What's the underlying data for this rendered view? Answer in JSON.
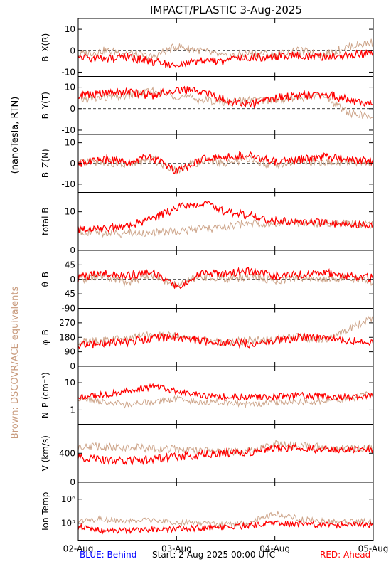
{
  "title": "IMPACT/PLASTIC     3-Aug-2025",
  "left_labels": {
    "units": "(nanoTesla, RTN)",
    "equivalents": "Brown: DSCOVR/ACE equivalents"
  },
  "footer": {
    "behind": "BLUE: Behind",
    "start": "Start:  2-Aug-2025 00:00 UTC",
    "ahead": "RED: Ahead"
  },
  "colors": {
    "ahead": "#ff0000",
    "brown": "#c89a7c",
    "behind": "#0000ff"
  },
  "chart_data": {
    "type": "line",
    "x_ticks": [
      "02-Aug",
      "03-Aug",
      "04-Aug",
      "05-Aug"
    ],
    "xlim": [
      "2025-08-02T00:00",
      "2025-08-05T00:00"
    ],
    "panels": [
      {
        "id": "bx",
        "ylabel": "B_X(R)",
        "ylim": [
          -12,
          15
        ],
        "yticks": [
          -10,
          0,
          10
        ],
        "zero_line": true,
        "scale": "linear",
        "series": [
          {
            "color": "brown",
            "x": [
              0,
              0.25,
              0.5,
              0.75,
              1,
              1.25,
              1.5,
              1.75,
              2,
              2.25,
              2.5,
              2.75,
              3
            ],
            "y": [
              -2,
              0,
              -1,
              -3,
              2,
              0,
              -3,
              -1,
              -2,
              0,
              -2,
              2,
              4
            ]
          },
          {
            "color": "ahead",
            "x": [
              0,
              0.25,
              0.5,
              0.75,
              1,
              1.25,
              1.5,
              1.75,
              2,
              2.25,
              2.5,
              2.75,
              3
            ],
            "y": [
              -3,
              -4,
              -3,
              -5,
              -7,
              -5,
              -5,
              -3,
              -3,
              -2,
              -3,
              -2,
              -1
            ]
          }
        ]
      },
      {
        "id": "by",
        "ylabel": "B_Y(T)",
        "ylim": [
          -12,
          15
        ],
        "yticks": [
          -10,
          0,
          10
        ],
        "zero_line": true,
        "scale": "linear",
        "series": [
          {
            "color": "brown",
            "x": [
              0,
              0.25,
              0.5,
              0.75,
              1,
              1.25,
              1.5,
              1.75,
              2,
              2.25,
              2.5,
              2.75,
              3
            ],
            "y": [
              4,
              5,
              6,
              8,
              6,
              4,
              3,
              4,
              4,
              5,
              6,
              -2,
              -4
            ]
          },
          {
            "color": "ahead",
            "x": [
              0,
              0.25,
              0.5,
              0.75,
              1,
              1.25,
              1.5,
              1.75,
              2,
              2.25,
              2.5,
              2.75,
              3
            ],
            "y": [
              6,
              7,
              8,
              6,
              9,
              8,
              4,
              2,
              5,
              6,
              7,
              4,
              2
            ]
          }
        ]
      },
      {
        "id": "bz",
        "ylabel": "B_Z(N)",
        "ylim": [
          -14,
          14
        ],
        "yticks": [
          -10,
          0,
          10
        ],
        "zero_line": true,
        "scale": "linear",
        "series": [
          {
            "color": "brown",
            "x": [
              0,
              0.25,
              0.5,
              0.75,
              1,
              1.25,
              1.5,
              1.75,
              2,
              2.25,
              2.5,
              2.75,
              3
            ],
            "y": [
              0,
              1,
              -1,
              2,
              -3,
              1,
              0,
              2,
              -1,
              1,
              0,
              1,
              0
            ]
          },
          {
            "color": "ahead",
            "x": [
              0,
              0.25,
              0.5,
              0.75,
              1,
              1.25,
              1.5,
              1.75,
              2,
              2.25,
              2.5,
              2.75,
              3
            ],
            "y": [
              0,
              2,
              1,
              3,
              -4,
              2,
              3,
              4,
              1,
              2,
              3,
              2,
              1
            ]
          }
        ]
      },
      {
        "id": "bt",
        "ylabel": "total B",
        "ylim": [
          0,
          15
        ],
        "yticks": [
          0,
          10
        ],
        "zero_line": false,
        "scale": "linear",
        "series": [
          {
            "color": "brown",
            "x": [
              0,
              0.25,
              0.5,
              0.75,
              1,
              1.25,
              1.5,
              1.75,
              2,
              2.25,
              2.5,
              2.75,
              3
            ],
            "y": [
              5,
              4.5,
              4.5,
              4.5,
              5,
              5.5,
              6,
              7,
              7,
              7,
              7,
              7,
              6.5
            ]
          },
          {
            "color": "ahead",
            "x": [
              0,
              0.25,
              0.5,
              0.75,
              1,
              1.25,
              1.5,
              1.75,
              2,
              2.25,
              2.5,
              2.75,
              3
            ],
            "y": [
              5.5,
              5.5,
              6.5,
              8,
              11,
              12.5,
              10,
              9,
              7.5,
              7.5,
              7,
              7,
              6.5
            ]
          }
        ]
      },
      {
        "id": "theta",
        "ylabel": "θ_B",
        "ylim": [
          -90,
          90
        ],
        "yticks": [
          -90,
          -45,
          0,
          45
        ],
        "zero_line": true,
        "scale": "linear",
        "series": [
          {
            "color": "brown",
            "x": [
              0,
              0.25,
              0.5,
              0.75,
              1,
              1.25,
              1.5,
              1.75,
              2,
              2.25,
              2.5,
              2.75,
              3
            ],
            "y": [
              0,
              10,
              -10,
              15,
              -20,
              10,
              0,
              10,
              -5,
              5,
              0,
              5,
              -10
            ]
          },
          {
            "color": "ahead",
            "x": [
              0,
              0.25,
              0.5,
              0.75,
              1,
              1.25,
              1.5,
              1.75,
              2,
              2.25,
              2.5,
              2.75,
              3
            ],
            "y": [
              5,
              20,
              10,
              25,
              -25,
              15,
              20,
              25,
              10,
              15,
              20,
              10,
              5
            ]
          }
        ]
      },
      {
        "id": "phi",
        "ylabel": "φ_B",
        "ylim": [
          0,
          360
        ],
        "yticks": [
          0,
          90,
          180,
          270
        ],
        "zero_line": false,
        "scale": "linear",
        "series": [
          {
            "color": "brown",
            "x": [
              0,
              0.25,
              0.5,
              0.75,
              1,
              1.25,
              1.5,
              1.75,
              2,
              2.25,
              2.5,
              2.75,
              3
            ],
            "y": [
              150,
              160,
              170,
              200,
              190,
              160,
              150,
              160,
              170,
              180,
              160,
              230,
              300
            ]
          },
          {
            "color": "ahead",
            "x": [
              0,
              0.25,
              0.5,
              0.75,
              1,
              1.25,
              1.5,
              1.75,
              2,
              2.25,
              2.5,
              2.75,
              3
            ],
            "y": [
              130,
              140,
              150,
              175,
              180,
              160,
              150,
              140,
              160,
              180,
              170,
              160,
              140
            ]
          }
        ]
      },
      {
        "id": "np",
        "ylabel": "N_P (cm⁻³)",
        "ylim": [
          0.3,
          40
        ],
        "yticks": [
          1,
          10
        ],
        "zero_line": false,
        "scale": "log",
        "series": [
          {
            "color": "brown",
            "x": [
              0,
              0.25,
              0.5,
              0.75,
              1,
              1.25,
              1.5,
              1.75,
              2,
              2.25,
              2.5,
              2.75,
              3
            ],
            "y": [
              2.5,
              2,
              1.5,
              2,
              2.5,
              2,
              2,
              1.5,
              2,
              2,
              2,
              2.5,
              4
            ]
          },
          {
            "color": "ahead",
            "x": [
              0,
              0.25,
              0.5,
              0.75,
              1,
              1.25,
              1.5,
              1.75,
              2,
              2.25,
              2.5,
              2.75,
              3
            ],
            "y": [
              3,
              3.5,
              5,
              7,
              5,
              3.5,
              3,
              3,
              3,
              3.5,
              3,
              3,
              3.5
            ]
          }
        ]
      },
      {
        "id": "v",
        "ylabel": "V (km/s)",
        "ylim": [
          0,
          800
        ],
        "yticks": [
          0,
          400
        ],
        "zero_line": false,
        "scale": "linear",
        "series": [
          {
            "color": "brown",
            "x": [
              0,
              0.25,
              0.5,
              0.75,
              1,
              1.25,
              1.5,
              1.75,
              2,
              2.25,
              2.5,
              2.75,
              3
            ],
            "y": [
              500,
              490,
              480,
              470,
              450,
              430,
              420,
              440,
              530,
              500,
              480,
              470,
              470
            ]
          },
          {
            "color": "ahead",
            "x": [
              0,
              0.25,
              0.5,
              0.75,
              1,
              1.25,
              1.5,
              1.75,
              2,
              2.25,
              2.5,
              2.75,
              3
            ],
            "y": [
              340,
              310,
              300,
              320,
              350,
              380,
              400,
              420,
              460,
              470,
              460,
              450,
              450
            ]
          }
        ]
      },
      {
        "id": "temp",
        "ylabel": "Ion Temp",
        "ylim": [
          20000,
          5000000
        ],
        "yticks": [
          100000,
          1000000
        ],
        "ytick_labels": [
          "10⁵",
          "10⁶"
        ],
        "zero_line": false,
        "scale": "log",
        "series": [
          {
            "color": "brown",
            "x": [
              0,
              0.25,
              0.5,
              0.75,
              1,
              1.25,
              1.5,
              1.75,
              2,
              2.25,
              2.5,
              2.75,
              3
            ],
            "y": [
              130000,
              150000,
              120000,
              130000,
              110000,
              100000,
              90000,
              100000,
              250000,
              150000,
              120000,
              110000,
              120000
            ]
          },
          {
            "color": "ahead",
            "x": [
              0,
              0.25,
              0.5,
              0.75,
              1,
              1.25,
              1.5,
              1.75,
              2,
              2.25,
              2.5,
              2.75,
              3
            ],
            "y": [
              70000,
              50000,
              50000,
              55000,
              60000,
              65000,
              70000,
              80000,
              110000,
              90000,
              85000,
              85000,
              90000
            ]
          }
        ]
      }
    ]
  }
}
